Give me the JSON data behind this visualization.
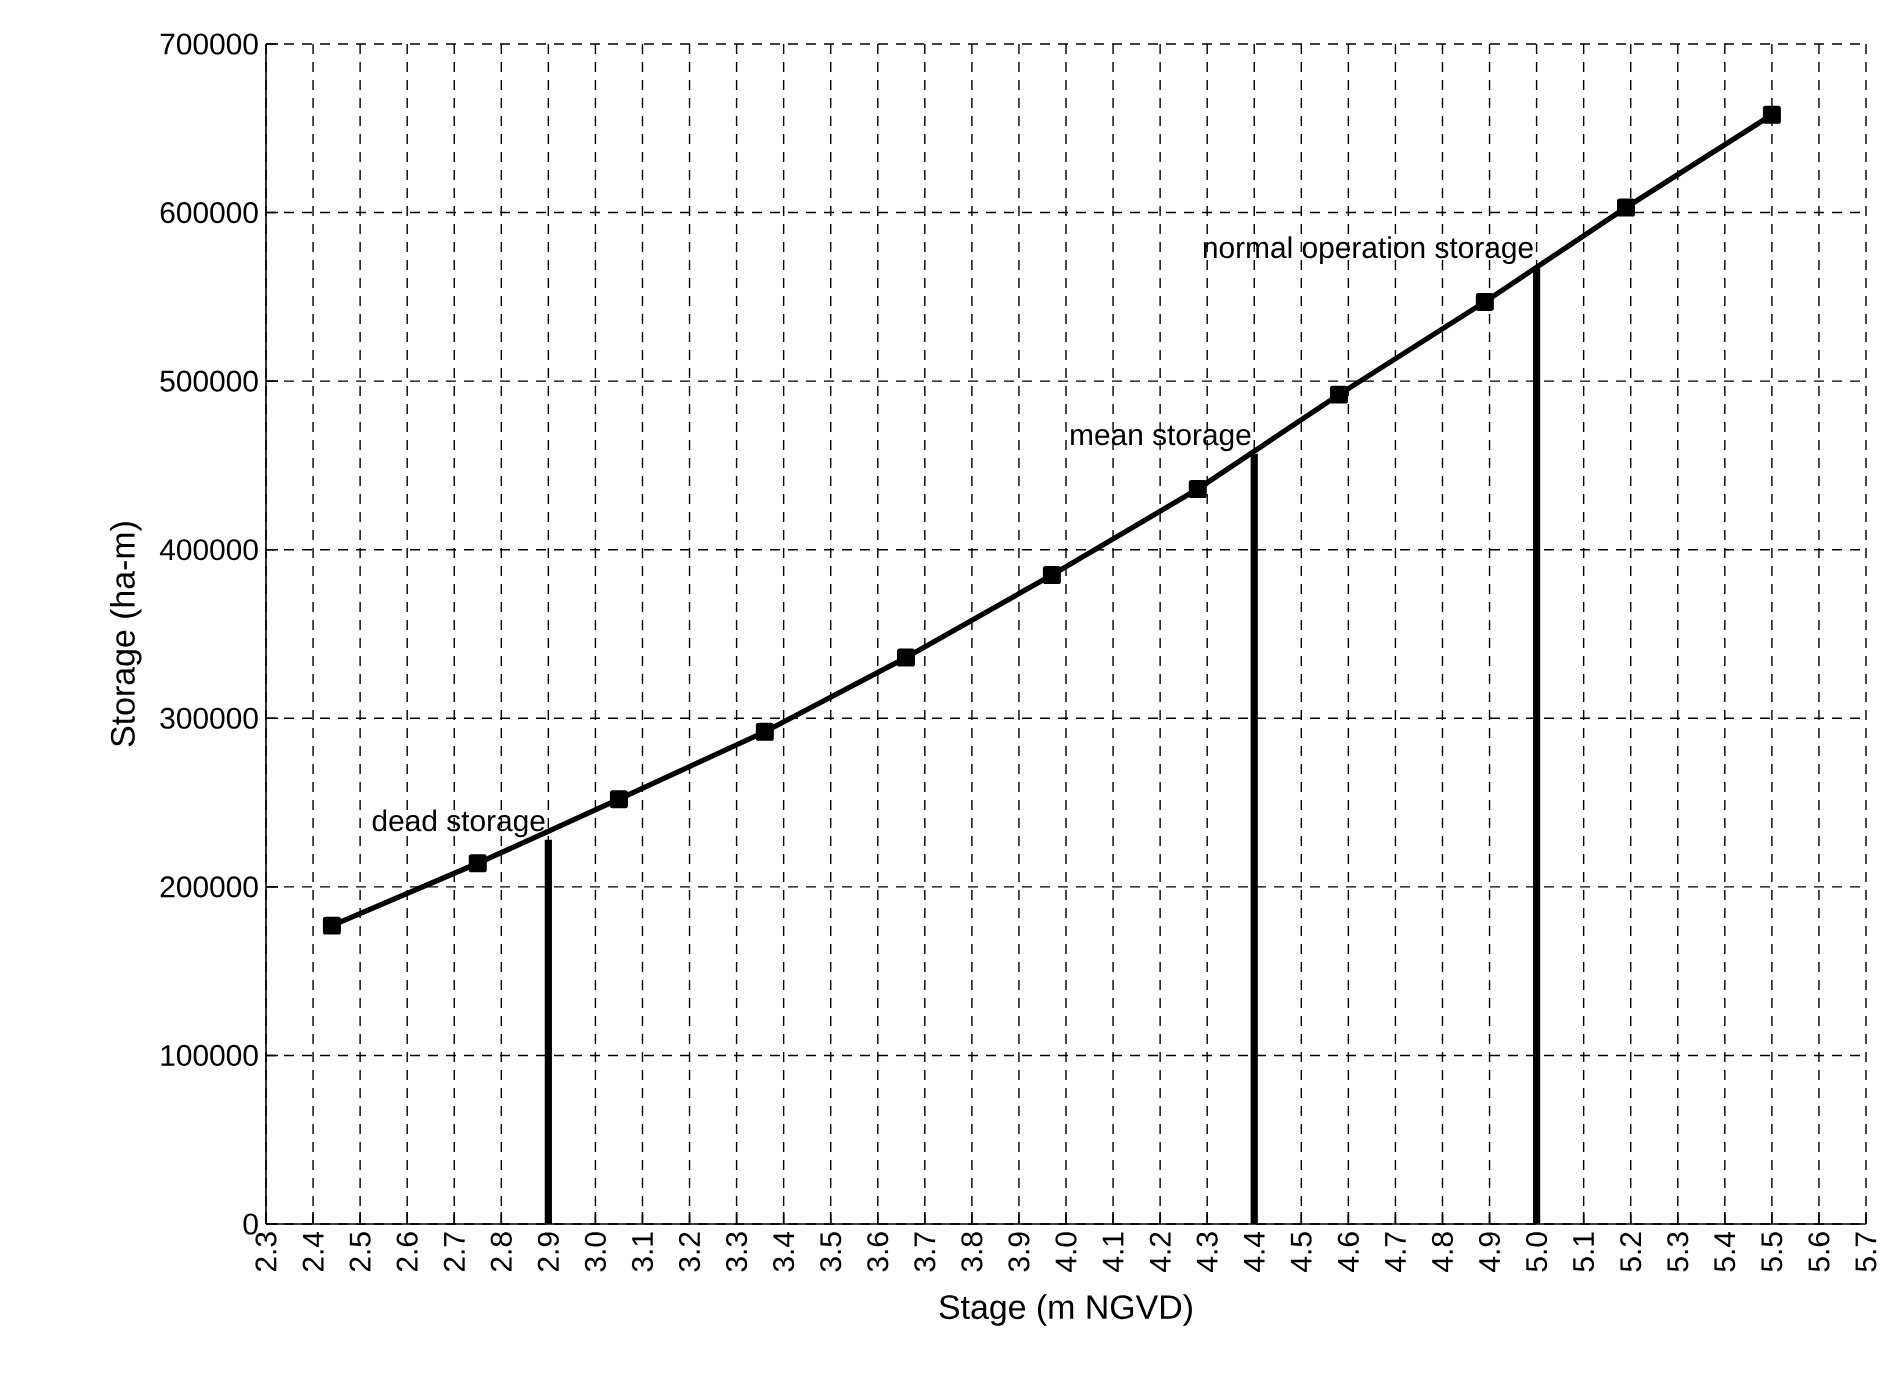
{
  "chart_data": {
    "type": "line",
    "xlabel": "Stage (m NGVD)",
    "ylabel": "Storage (ha-m)",
    "xlim": [
      2.3,
      5.7
    ],
    "ylim": [
      0,
      700000
    ],
    "xticks": [
      2.3,
      2.4,
      2.5,
      2.6,
      2.7,
      2.8,
      2.9,
      {
        "value": 3,
        "label": "3.0"
      },
      3.1,
      3.2,
      3.3,
      3.4,
      3.5,
      3.6,
      3.7,
      3.8,
      3.9,
      {
        "value": 4,
        "label": "4.0"
      },
      4.1,
      4.2,
      4.3,
      4.4,
      4.5,
      4.6,
      4.7,
      4.8,
      4.9,
      {
        "value": 5,
        "label": "5.0"
      },
      5.1,
      5.2,
      5.3,
      5.4,
      5.5,
      5.6,
      5.7
    ],
    "yticks": [
      0,
      100000,
      200000,
      300000,
      400000,
      500000,
      600000,
      700000
    ],
    "grid": true,
    "series": [
      {
        "color": "#000000",
        "marker": "square",
        "line_style": "solid",
        "x": [
          2.44,
          2.75,
          3.05,
          3.36,
          3.66,
          3.97,
          4.28,
          4.58,
          4.89,
          5.19,
          5.5
        ],
        "values": [
          177000,
          214000,
          252000,
          292000,
          336000,
          385000,
          436000,
          492000,
          547000,
          603000,
          658000
        ]
      },
      {
        "name": "dead storage",
        "color": "#000000",
        "marker": "none",
        "line_style": "solid",
        "x": [
          2.9,
          2.9
        ],
        "values": [
          0,
          228000
        ]
      },
      {
        "name": "mean storage",
        "color": "#000000",
        "marker": "none",
        "line_style": "solid",
        "x": [
          4.4,
          4.4
        ],
        "values": [
          0,
          457000
        ]
      },
      {
        "name": "normal operation storage",
        "color": "#000000",
        "marker": "none",
        "line_style": "solid",
        "x": [
          5.0,
          5.0
        ],
        "values": [
          0,
          568000
        ]
      }
    ]
  }
}
